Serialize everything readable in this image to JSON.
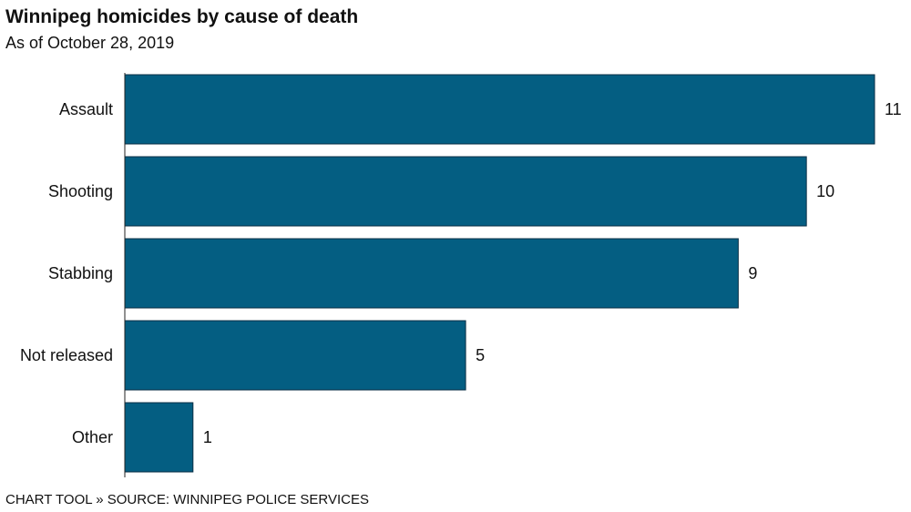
{
  "chart_data": {
    "type": "bar",
    "orientation": "horizontal",
    "title": "Winnipeg homicides by cause of death",
    "subtitle": "As of October 28, 2019",
    "categories": [
      "Assault",
      "Shooting",
      "Stabbing",
      "Not released",
      "Other"
    ],
    "values": [
      11,
      10,
      9,
      5,
      1
    ],
    "data_labels": [
      "11",
      "10",
      "9",
      "5",
      "1"
    ],
    "xlim": [
      0,
      11
    ],
    "grid": false,
    "legend": "none",
    "bar_color": "#045E82",
    "bar_stroke": "#0a2f45"
  },
  "footer": {
    "source": "CHART TOOL » SOURCE: WINNIPEG POLICE SERVICES"
  }
}
